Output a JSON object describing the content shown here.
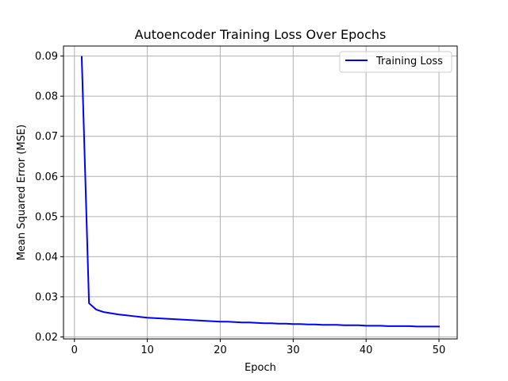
{
  "chart_data": {
    "type": "line",
    "title": "Autoencoder Training Loss Over Epochs",
    "xlabel": "Epoch",
    "ylabel": "Mean Squared Error (MSE)",
    "xlim": [
      -1.5,
      52.5
    ],
    "ylim": [
      0.0195,
      0.0925
    ],
    "xticks": [
      0,
      10,
      20,
      30,
      40,
      50
    ],
    "yticks": [
      0.02,
      0.03,
      0.04,
      0.05,
      0.06,
      0.07,
      0.08,
      0.09
    ],
    "ytick_labels": [
      "0.02",
      "0.03",
      "0.04",
      "0.05",
      "0.06",
      "0.07",
      "0.08",
      "0.09"
    ],
    "grid": true,
    "legend_position": "top-right",
    "series": [
      {
        "name": "Training Loss",
        "color": "#0000ff",
        "x": [
          1,
          2,
          3,
          4,
          5,
          6,
          7,
          8,
          9,
          10,
          11,
          12,
          13,
          14,
          15,
          16,
          17,
          18,
          19,
          20,
          21,
          22,
          23,
          24,
          25,
          26,
          27,
          28,
          29,
          30,
          31,
          32,
          33,
          34,
          35,
          36,
          37,
          38,
          39,
          40,
          41,
          42,
          43,
          44,
          45,
          46,
          47,
          48,
          49,
          50
        ],
        "values": [
          0.0898,
          0.0284,
          0.0268,
          0.0262,
          0.0259,
          0.0256,
          0.0254,
          0.0252,
          0.025,
          0.0248,
          0.0247,
          0.0246,
          0.0245,
          0.0244,
          0.0243,
          0.0242,
          0.0241,
          0.024,
          0.0239,
          0.0238,
          0.0238,
          0.0237,
          0.0236,
          0.0236,
          0.0235,
          0.0234,
          0.0234,
          0.0233,
          0.0233,
          0.0232,
          0.0232,
          0.0231,
          0.0231,
          0.023,
          0.023,
          0.023,
          0.0229,
          0.0229,
          0.0229,
          0.0228,
          0.0228,
          0.0228,
          0.0227,
          0.0227,
          0.0227,
          0.0227,
          0.0226,
          0.0226,
          0.0226,
          0.0226
        ]
      }
    ]
  }
}
